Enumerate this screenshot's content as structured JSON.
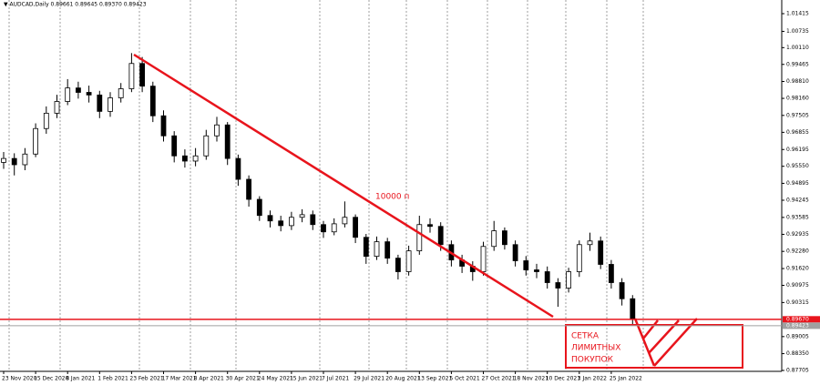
{
  "chart_data": {
    "type": "candlestick",
    "title": "▼ AUDCAD,Daily 0.89661 0.89645 0.89370 0.89423",
    "categories": [
      "23 Nov 2020",
      null,
      null,
      "15 Dec 2020",
      null,
      null,
      "8 Jan 2021",
      null,
      null,
      "1 Feb 2021",
      null,
      null,
      "23 Feb 2021",
      null,
      null,
      "17 Mar 2021",
      null,
      null,
      "8 Apr 2021",
      null,
      null,
      "30 Apr 2021",
      null,
      null,
      "24 May 2021",
      null,
      null,
      "15 Jun 2021",
      null,
      null,
      "7 Jul 2021",
      null,
      null,
      "29 Jul 2021",
      null,
      null,
      "20 Aug 2021",
      null,
      null,
      "13 Sep 2021",
      null,
      null,
      "5 Oct 2021",
      null,
      null,
      "27 Oct 2021",
      null,
      null,
      "18 Nov 2021",
      null,
      null,
      "10 Dec 2021",
      null,
      null,
      "3 Jan 2022",
      null,
      null,
      "25 Jan 2022",
      null,
      null
    ],
    "open": [
      0.957,
      0.9585,
      0.9561,
      0.9602,
      0.97,
      0.9759,
      0.9804,
      0.9856,
      0.9839,
      0.9829,
      0.9766,
      0.9818,
      0.9853,
      0.995,
      0.9863,
      0.9749,
      0.9672,
      0.9595,
      0.9575,
      0.9595,
      0.9672,
      0.9714,
      0.9585,
      0.9505,
      0.9428,
      0.9366,
      0.9345,
      0.9327,
      0.9359,
      0.9369,
      0.9331,
      0.9303,
      0.9334,
      0.9359,
      0.9282,
      0.9209,
      0.9265,
      0.9202,
      0.915,
      0.923,
      0.9331,
      0.9324,
      0.9254,
      0.9195,
      0.9171,
      0.915,
      0.9247,
      0.9307,
      0.9254,
      0.9192,
      0.9157,
      0.915,
      0.9108,
      0.9087,
      0.915,
      0.9254,
      0.9268,
      0.9178,
      0.9108,
      0.9046
    ],
    "high": [
      0.961,
      0.9605,
      0.9625,
      0.972,
      0.9785,
      0.983,
      0.989,
      0.988,
      0.9865,
      0.9845,
      0.984,
      0.9875,
      0.999,
      0.9975,
      0.988,
      0.977,
      0.969,
      0.962,
      0.9625,
      0.9695,
      0.9745,
      0.9725,
      0.96,
      0.952,
      0.944,
      0.9385,
      0.9365,
      0.938,
      0.939,
      0.9385,
      0.9345,
      0.9355,
      0.942,
      0.937,
      0.9295,
      0.9285,
      0.928,
      0.9215,
      0.925,
      0.9365,
      0.9355,
      0.934,
      0.927,
      0.9215,
      0.919,
      0.9265,
      0.9345,
      0.932,
      0.927,
      0.921,
      0.918,
      0.917,
      0.9125,
      0.9165,
      0.927,
      0.93,
      0.9285,
      0.9195,
      0.9125,
      0.906
    ],
    "low": [
      0.9545,
      0.952,
      0.954,
      0.959,
      0.968,
      0.974,
      0.979,
      0.9815,
      0.98,
      0.974,
      0.9745,
      0.98,
      0.984,
      0.984,
      0.9725,
      0.965,
      0.957,
      0.955,
      0.9555,
      0.958,
      0.965,
      0.956,
      0.948,
      0.94,
      0.9345,
      0.932,
      0.9305,
      0.931,
      0.934,
      0.931,
      0.928,
      0.929,
      0.932,
      0.926,
      0.918,
      0.9195,
      0.918,
      0.912,
      0.9135,
      0.9215,
      0.93,
      0.923,
      0.917,
      0.9145,
      0.9115,
      0.9135,
      0.923,
      0.9235,
      0.917,
      0.9135,
      0.9125,
      0.9085,
      0.9015,
      0.907,
      0.913,
      0.923,
      0.916,
      0.9085,
      0.902,
      0.8942
    ],
    "close": [
      0.9585,
      0.9561,
      0.9602,
      0.97,
      0.9759,
      0.9804,
      0.9856,
      0.9839,
      0.9829,
      0.9766,
      0.9818,
      0.9853,
      0.995,
      0.9863,
      0.9749,
      0.9672,
      0.9595,
      0.9575,
      0.9595,
      0.9672,
      0.9714,
      0.9585,
      0.9505,
      0.9428,
      0.9366,
      0.9345,
      0.9327,
      0.9359,
      0.9369,
      0.9331,
      0.9303,
      0.9334,
      0.9359,
      0.9282,
      0.9209,
      0.9265,
      0.9202,
      0.915,
      0.923,
      0.9331,
      0.9324,
      0.9254,
      0.9195,
      0.9171,
      0.915,
      0.9247,
      0.9307,
      0.9254,
      0.9192,
      0.9157,
      0.915,
      0.9108,
      0.9087,
      0.915,
      0.9254,
      0.9268,
      0.9178,
      0.9108,
      0.9046,
      0.8969
    ],
    "color": "#000000",
    "ylim": [
      0.8767,
      1.0194
    ],
    "yticks": [
      {
        "value": 1.01415,
        "label": "1.01415"
      },
      {
        "value": 1.00735,
        "label": "1.00735"
      },
      {
        "value": 1.0011,
        "label": "1.00110"
      },
      {
        "value": 0.99465,
        "label": "0.99465"
      },
      {
        "value": 0.9881,
        "label": "0.98810"
      },
      {
        "value": 0.9816,
        "label": "0.98160"
      },
      {
        "value": 0.97505,
        "label": "0.97505"
      },
      {
        "value": 0.96855,
        "label": "0.96855"
      },
      {
        "value": 0.96195,
        "label": "0.96195"
      },
      {
        "value": 0.9555,
        "label": "0.95550"
      },
      {
        "value": 0.94895,
        "label": "0.94895"
      },
      {
        "value": 0.94245,
        "label": "0.94245"
      },
      {
        "value": 0.93585,
        "label": "0.93585"
      },
      {
        "value": 0.92935,
        "label": "0.92935"
      },
      {
        "value": 0.9228,
        "label": "0.92280"
      },
      {
        "value": 0.9162,
        "label": "0.91620"
      },
      {
        "value": 0.90975,
        "label": "0.90975"
      },
      {
        "value": 0.90315,
        "label": "0.90315"
      },
      {
        "value": 0.89005,
        "label": "0.89005"
      },
      {
        "value": 0.8835,
        "label": "0.88350"
      },
      {
        "value": 0.87705,
        "label": "0.87705"
      }
    ],
    "price_lines": [
      {
        "value": 0.8967,
        "label": "0.89670",
        "color": "#e8141c"
      },
      {
        "value": 0.89423,
        "label": "0.89423",
        "color": "#a0a0a0"
      }
    ],
    "annotations": [
      "10000 п",
      "СЕТКА",
      "ЛИМИТНЫХ",
      "ПОКУПОК"
    ]
  }
}
